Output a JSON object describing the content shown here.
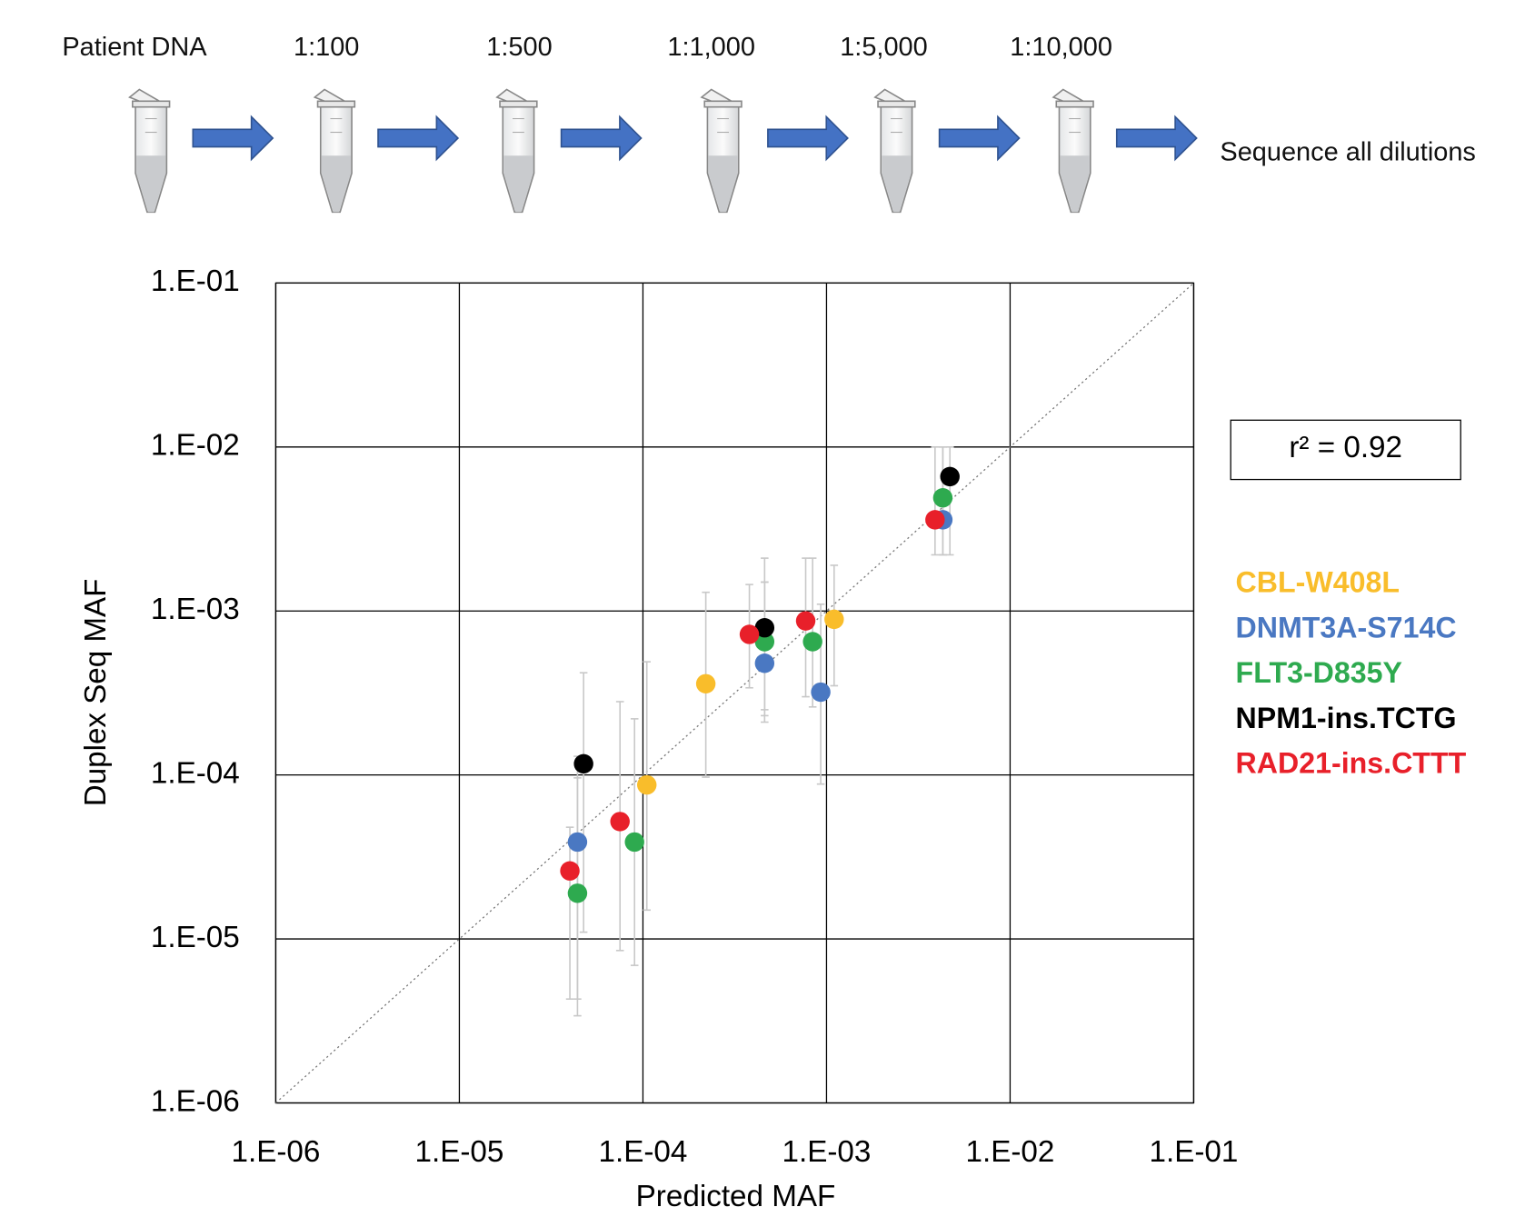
{
  "diagram": {
    "steps": [
      "Patient DNA",
      "1:100",
      "1:500",
      "1:1,000",
      "1:5,000",
      "1:10,000"
    ],
    "final_step": "Sequence all dilutions"
  },
  "chart_data": {
    "type": "scatter",
    "x_label": "Predicted MAF",
    "y_label": "Duplex Seq MAF",
    "annotation": "r² = 0.92",
    "x_scale": "log",
    "y_scale": "log",
    "grid": true,
    "legend": "right",
    "identity_line": true,
    "error_bar_color": "#c8c8c8",
    "xlim": [
      1e-06,
      0.1
    ],
    "ylim": [
      1e-06,
      0.1
    ],
    "xticks": [
      {
        "value": 1e-06,
        "label": "1.E-06"
      },
      {
        "value": 1e-05,
        "label": "1.E-05"
      },
      {
        "value": 0.0001,
        "label": "1.E-04"
      },
      {
        "value": 0.001,
        "label": "1.E-03"
      },
      {
        "value": 0.01,
        "label": "1.E-02"
      },
      {
        "value": 0.1,
        "label": "1.E-01"
      }
    ],
    "yticks": [
      {
        "value": 1e-06,
        "label": "1.E-06"
      },
      {
        "value": 1e-05,
        "label": "1.E-05"
      },
      {
        "value": 0.0001,
        "label": "1.E-04"
      },
      {
        "value": 0.001,
        "label": "1.E-03"
      },
      {
        "value": 0.01,
        "label": "1.E-02"
      },
      {
        "value": 0.1,
        "label": "1.E-01"
      }
    ],
    "series": [
      {
        "name": "CBL-W408L",
        "color": "#f9bd2b",
        "x": [
          0.0011,
          0.00022,
          0.000105
        ],
        "values": [
          0.00089,
          0.00036,
          8.7e-05
        ],
        "lower": [
          0.00035,
          9.7e-05,
          1.5e-05
        ],
        "upper": [
          0.0019,
          0.0013,
          0.00049
        ]
      },
      {
        "name": "DNMT3A-S714C",
        "color": "#4a78c2",
        "x": [
          0.0043,
          0.00046,
          0.00093,
          4.4e-05
        ],
        "values": [
          0.0036,
          0.00048,
          0.00032,
          3.9e-05
        ],
        "lower": [
          0.0022,
          0.00021,
          8.8e-05,
          4.3e-06
        ],
        "upper": [
          0.01,
          0.0015,
          0.0011,
          9.6e-05
        ]
      },
      {
        "name": "FLT3-D835Y",
        "color": "#2eaa4f",
        "x": [
          0.0043,
          0.00046,
          0.00084,
          9e-05,
          4.4e-05
        ],
        "values": [
          0.0049,
          0.00065,
          0.00065,
          3.9e-05,
          1.9e-05
        ],
        "lower": [
          0.0022,
          0.00023,
          0.00026,
          6.9e-06,
          3.4e-06
        ],
        "upper": [
          0.01,
          0.0021,
          0.0021,
          0.00022,
          0.00013
        ]
      },
      {
        "name": "NPM1-ins.TCTG",
        "color": "#000000",
        "x": [
          0.0047,
          0.00046,
          4.75e-05
        ],
        "values": [
          0.0066,
          0.00079,
          0.000117
        ],
        "lower": [
          0.0022,
          0.00025,
          1.1e-05
        ],
        "upper": [
          0.01,
          0.0015,
          0.00042
        ]
      },
      {
        "name": "RAD21-ins.CTTT",
        "color": "#e8202a",
        "x": [
          0.0039,
          0.00077,
          0.00038,
          7.5e-05,
          4e-05
        ],
        "values": [
          0.0036,
          0.00087,
          0.00072,
          5.2e-05,
          2.6e-05
        ],
        "lower": [
          0.0022,
          0.0003,
          0.00034,
          8.5e-06,
          4.3e-06
        ],
        "upper": [
          0.01,
          0.0021,
          0.00145,
          0.00028,
          4.8e-05
        ]
      }
    ]
  }
}
